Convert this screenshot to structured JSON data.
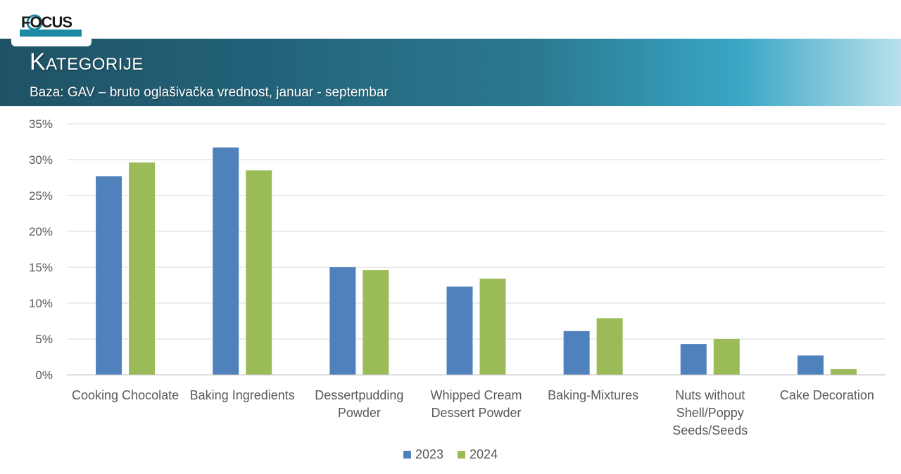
{
  "header": {
    "logo_text": "FOCUS",
    "title": "Kategorije",
    "subtitle": "Baza: GAV – bruto oglašivačka vrednost, januar - septembar"
  },
  "colors": {
    "series_2023": "#4f81bd",
    "series_2024": "#9bbb59",
    "grid": "#d9d9d9",
    "axis_text": "#595959"
  },
  "chart_data": {
    "type": "bar",
    "categories": [
      [
        "Cooking Chocolate"
      ],
      [
        "Baking Ingredients"
      ],
      [
        "Dessertpudding",
        "Powder"
      ],
      [
        "Whipped Cream",
        "Dessert Powder"
      ],
      [
        "Baking-Mixtures"
      ],
      [
        "Nuts without",
        "Shell/Poppy",
        "Seeds/Seeds"
      ],
      [
        "Cake Decoration"
      ]
    ],
    "series": [
      {
        "name": "2023",
        "values": [
          27.7,
          31.7,
          15.0,
          12.3,
          6.1,
          4.3,
          2.7
        ]
      },
      {
        "name": "2024",
        "values": [
          29.6,
          28.5,
          14.6,
          13.4,
          7.9,
          5.0,
          0.8
        ]
      }
    ],
    "ylim": [
      0,
      35
    ],
    "yticks": [
      "0%",
      "5%",
      "10%",
      "15%",
      "20%",
      "25%",
      "30%",
      "35%"
    ],
    "grid": true,
    "legend_position": "bottom"
  }
}
